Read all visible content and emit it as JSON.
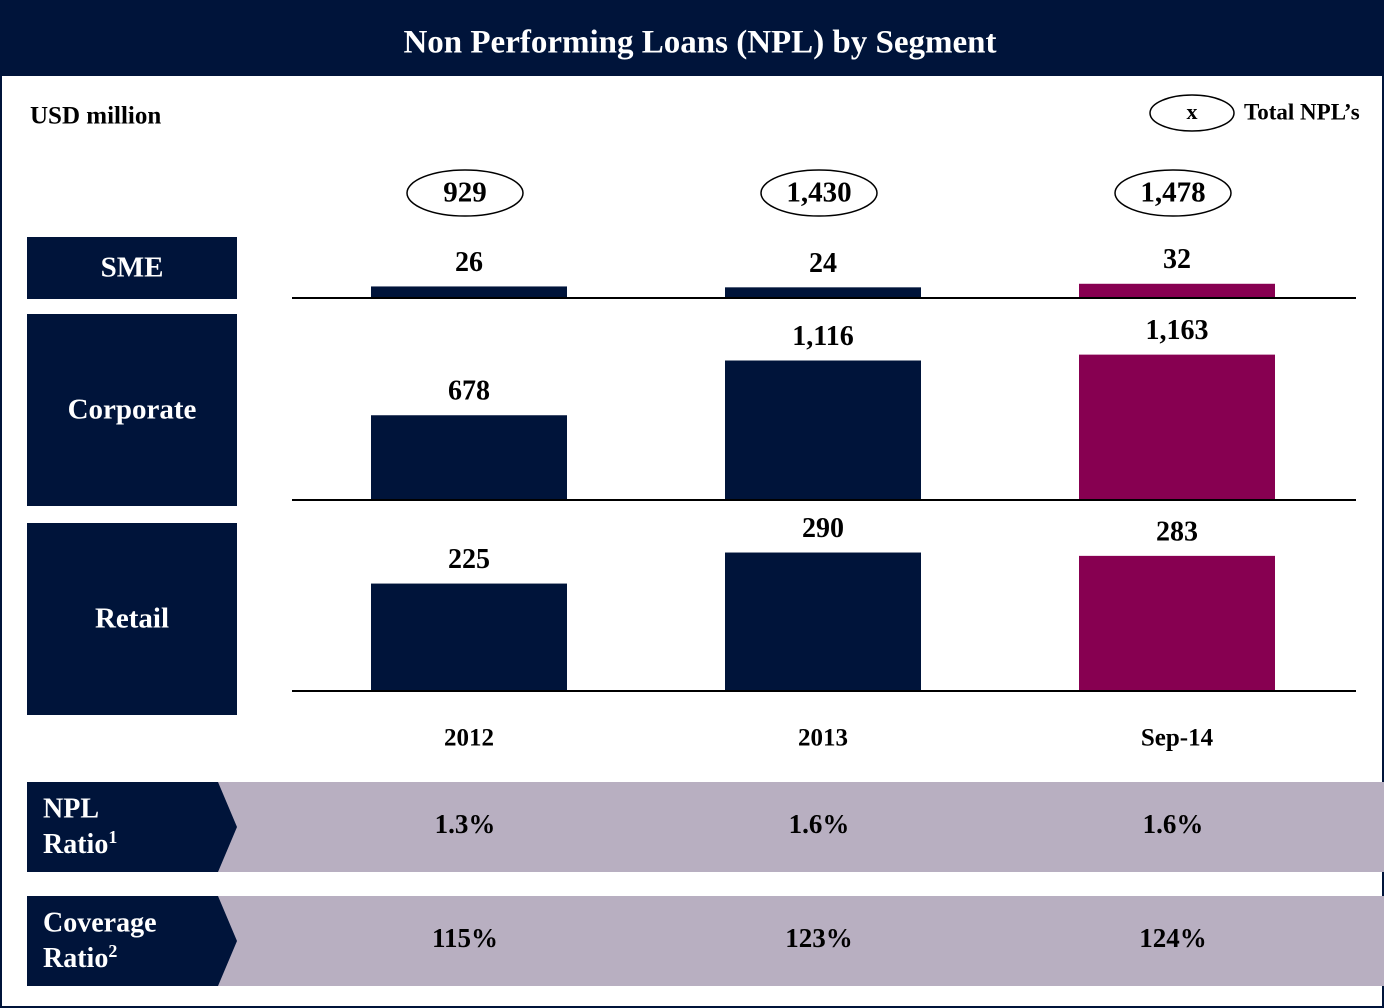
{
  "chart_data": {
    "type": "bar",
    "title": "Non Performing Loans (NPL) by Segment",
    "unit": "USD million",
    "categories": [
      "2012",
      "2013",
      "Sep-14"
    ],
    "colors": [
      "#00143a",
      "#00143a",
      "#870051"
    ],
    "series": [
      {
        "name": "SME",
        "values": [
          26,
          24,
          32
        ],
        "value_labels": [
          "26",
          "24",
          "32"
        ],
        "ylim": [
          0,
          90
        ]
      },
      {
        "name": "Corporate",
        "values": [
          678,
          1116,
          1163
        ],
        "value_labels": [
          "678",
          "1,116",
          "1,163"
        ],
        "ylim": [
          0,
          1600
        ]
      },
      {
        "name": "Retail",
        "values": [
          225,
          290,
          283
        ],
        "value_labels": [
          "225",
          "290",
          "283"
        ],
        "ylim": [
          0,
          400
        ]
      }
    ],
    "totals": {
      "name": "Total NPL’s",
      "legend_symbol": "x",
      "values": [
        929,
        1430,
        1478
      ],
      "value_labels": [
        "929",
        "1,430",
        "1,478"
      ]
    },
    "ratios": [
      {
        "name": [
          "NPL",
          "Ratio"
        ],
        "footnote": "1",
        "values": [
          1.3,
          1.6,
          1.6
        ],
        "value_labels": [
          "1.3%",
          "1.6%",
          "1.6%"
        ]
      },
      {
        "name": [
          "Coverage",
          "Ratio"
        ],
        "footnote": "2",
        "values": [
          115,
          123,
          124
        ],
        "value_labels": [
          "115%",
          "123%",
          "124%"
        ]
      }
    ]
  }
}
